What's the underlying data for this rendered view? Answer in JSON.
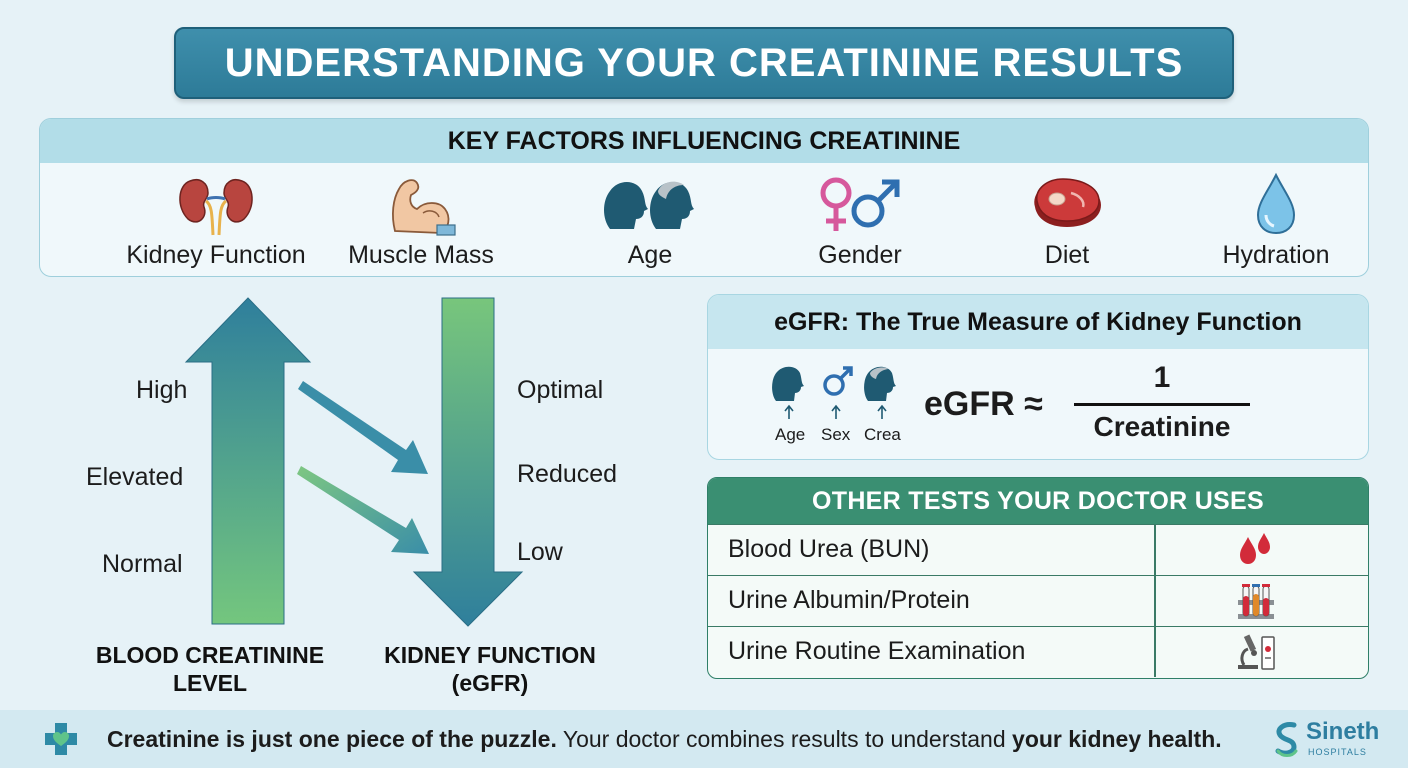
{
  "title": "UNDERSTANDING YOUR CREATININE RESULTS",
  "factors": {
    "heading": "KEY FACTORS INFLUENCING CREATININE",
    "items": [
      {
        "label": "Kidney Function",
        "icon": "kidneys-icon"
      },
      {
        "label": "Muscle Mass",
        "icon": "flexed-arm-icon"
      },
      {
        "label": "Age",
        "icon": "age-heads-icon"
      },
      {
        "label": "Gender",
        "icon": "gender-symbols-icon"
      },
      {
        "label": "Diet",
        "icon": "steak-icon"
      },
      {
        "label": "Hydration",
        "icon": "water-drop-icon"
      }
    ]
  },
  "creatinine_axis": {
    "levels": [
      "High",
      "Elevated",
      "Normal"
    ],
    "title_line1": "BLOOD CREATININE",
    "title_line2": "LEVEL"
  },
  "egfr_axis": {
    "levels": [
      "Optimal",
      "Reduced",
      "Low"
    ],
    "title_line1": "KIDNEY FUNCTION",
    "title_line2": "(eGFR)"
  },
  "egfr": {
    "heading": "eGFR: The True Measure of Kidney Function",
    "inputs": [
      "Age",
      "Sex",
      "Crea"
    ],
    "formula_lhs": "eGFR ≈",
    "numerator": "1",
    "denominator": "Creatinine"
  },
  "tests": {
    "heading": "OTHER TESTS YOUR DOCTOR USES",
    "rows": [
      {
        "name": "Blood Urea (BUN)",
        "icon": "blood-drops-icon"
      },
      {
        "name": "Urine Albumin/Protein",
        "icon": "test-tubes-icon"
      },
      {
        "name": "Urine Routine Examination",
        "icon": "microscope-icon"
      }
    ]
  },
  "footer": {
    "bold_lead": "Creatinine is just one piece of the puzzle.",
    "middle": " Your doctor combines results to understand ",
    "bold_tail": "your kidney health."
  },
  "brand": {
    "name": "Sineth",
    "sub": "HOSPITALS"
  },
  "colors": {
    "teal": "#2d7b98",
    "green": "#3a8f72",
    "accent_red": "#d22b3a"
  }
}
